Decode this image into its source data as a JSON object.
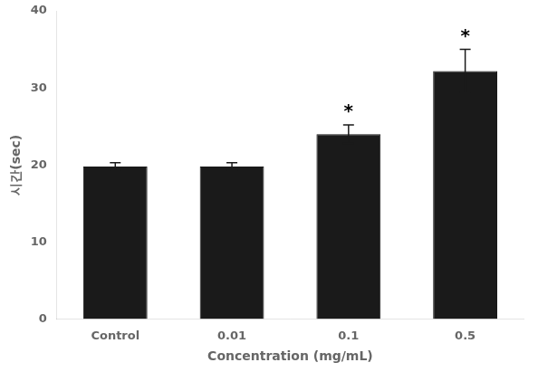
{
  "chart_data": {
    "type": "bar",
    "categories": [
      "Control",
      "0.01",
      "0.1",
      "0.5"
    ],
    "values": [
      19.8,
      19.8,
      24.0,
      32.2
    ],
    "errors": [
      0.5,
      0.5,
      1.2,
      2.8
    ],
    "color": "#1a1a1a",
    "xlabel": "Concentration (mg/mL)",
    "ylabel": "시간(sec)",
    "ylim": [
      0,
      40
    ],
    "yticks": [
      0,
      10,
      20,
      30,
      40
    ],
    "grid": false,
    "annotations": [
      {
        "x": "0.1",
        "text": "*"
      },
      {
        "x": "0.5",
        "text": "*"
      }
    ]
  }
}
